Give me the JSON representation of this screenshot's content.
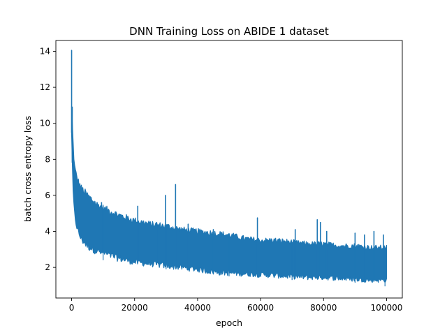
{
  "chart_data": {
    "type": "line",
    "title": "DNN Training Loss on ABIDE 1 dataset",
    "xlabel": "epoch",
    "ylabel": "batch cross entropy loss",
    "xlim": [
      -5000,
      105000
    ],
    "ylim": [
      0.3,
      14.6
    ],
    "xticks": [
      0,
      20000,
      40000,
      60000,
      80000,
      100000
    ],
    "yticks": [
      2,
      4,
      6,
      8,
      10,
      12,
      14
    ],
    "grid": false,
    "legend": "none",
    "series": [
      {
        "color": "#1f77b4",
        "band_upper": {
          "x": [
            0,
            300,
            600,
            1000,
            1500,
            2000,
            3000,
            5000,
            8000,
            10000,
            15000,
            20000,
            25000,
            30000,
            35000,
            40000,
            45000,
            50000,
            55000,
            60000,
            65000,
            70000,
            75000,
            80000,
            85000,
            90000,
            95000,
            100000
          ],
          "y": [
            10.9,
            9.6,
            8.4,
            7.5,
            7.1,
            6.8,
            6.4,
            6.0,
            5.5,
            5.3,
            4.9,
            4.6,
            4.4,
            4.3,
            4.1,
            4.0,
            3.9,
            3.8,
            3.6,
            3.5,
            3.5,
            3.4,
            3.3,
            3.3,
            3.2,
            3.2,
            3.1,
            3.1
          ]
        },
        "band_lower": {
          "x": [
            0,
            300,
            600,
            1000,
            1500,
            2000,
            3000,
            5000,
            8000,
            10000,
            15000,
            20000,
            25000,
            30000,
            35000,
            40000,
            45000,
            50000,
            55000,
            60000,
            65000,
            70000,
            75000,
            80000,
            85000,
            90000,
            95000,
            100000
          ],
          "y": [
            9.5,
            7.0,
            5.6,
            4.9,
            4.4,
            4.0,
            3.6,
            3.2,
            2.9,
            2.8,
            2.5,
            2.3,
            2.2,
            2.1,
            2.0,
            1.9,
            1.75,
            1.7,
            1.65,
            1.6,
            1.55,
            1.5,
            1.45,
            1.45,
            1.4,
            1.35,
            1.3,
            1.3
          ]
        },
        "spikes": {
          "x": [
            0,
            200,
            9500,
            21000,
            27000,
            29800,
            33000,
            37000,
            45000,
            59000,
            71000,
            78000,
            79000,
            81000,
            90000,
            93000,
            96000,
            99000
          ],
          "y": [
            14.05,
            10.9,
            5.6,
            5.4,
            4.5,
            6.0,
            6.6,
            4.4,
            4.1,
            4.75,
            4.1,
            4.65,
            4.5,
            4.0,
            3.9,
            3.8,
            4.0,
            3.8
          ]
        },
        "dips": {
          "x": [
            10000,
            30000,
            50000,
            70000,
            90000,
            99500
          ],
          "y": [
            2.4,
            1.9,
            1.5,
            1.3,
            1.15,
            0.95
          ]
        }
      }
    ]
  }
}
